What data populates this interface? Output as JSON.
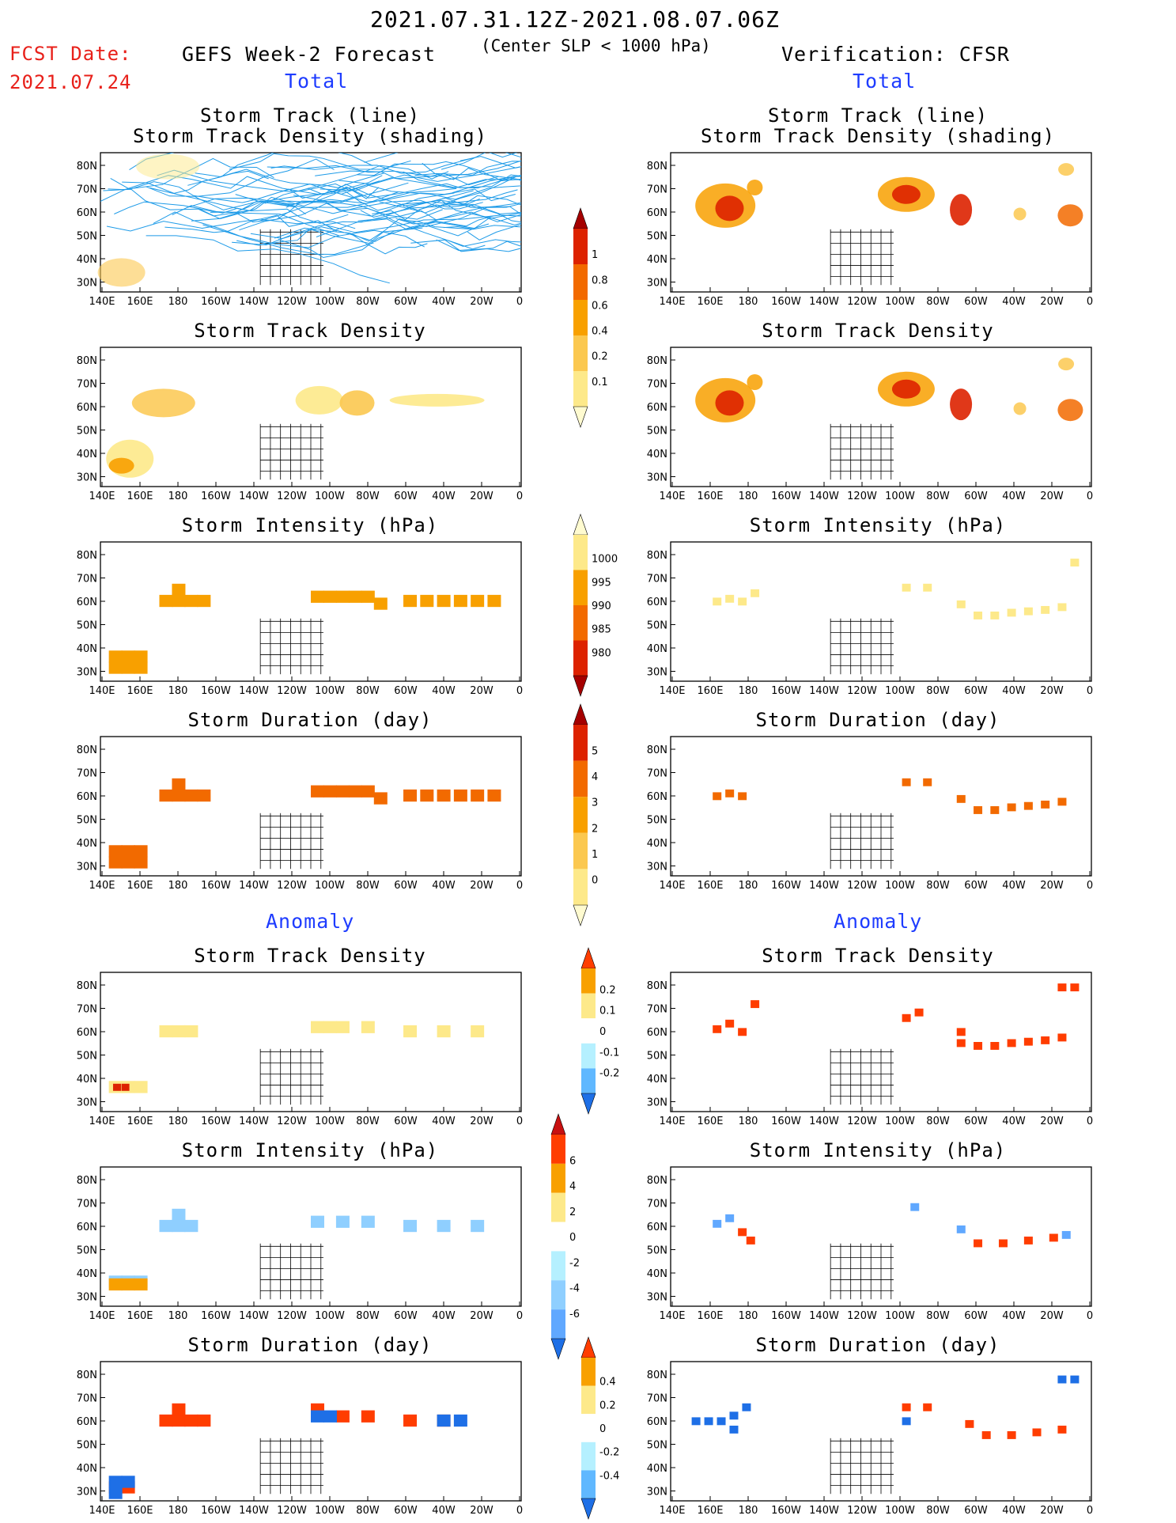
{
  "header": {
    "period": "2021.07.31.12Z-2021.08.07.06Z",
    "criterion": "(Center SLP < 1000 hPa)",
    "fcst_label": "FCST Date:",
    "fcst_date": "2021.07.24",
    "left_title": "GEFS Week-2 Forecast",
    "right_title": "Verification: CFSR",
    "section_total": "Total",
    "section_anomaly": "Anomaly"
  },
  "panel_titles": {
    "track_line": "Storm Track (line)",
    "track_shading": "Storm Track Density (shading)",
    "density": "Storm Track Density",
    "intensity": "Storm Intensity (hPa)",
    "duration": "Storm Duration (day)"
  },
  "axes": {
    "lat_labels": [
      "80N",
      "70N",
      "60N",
      "50N",
      "40N",
      "30N"
    ],
    "lon_labels": [
      "140E",
      "160E",
      "180",
      "160W",
      "140W",
      "120W",
      "100W",
      "80W",
      "60W",
      "40W",
      "20W",
      "0"
    ]
  },
  "colorbars": {
    "total_density": {
      "labels": [
        "1",
        "0.8",
        "0.6",
        "0.4",
        "0.2",
        "0.1"
      ],
      "colors": [
        "#a50000",
        "#dd2200",
        "#f26a00",
        "#f8a000",
        "#fbc850",
        "#fde98a",
        "#fffbd0"
      ]
    },
    "total_intensity": {
      "labels": [
        "1000",
        "995",
        "990",
        "985",
        "980"
      ],
      "colors": [
        "#fffbd0",
        "#fde98a",
        "#f8a000",
        "#f26a00",
        "#dd2200",
        "#a50000"
      ]
    },
    "total_duration": {
      "labels": [
        "5",
        "4",
        "3",
        "2",
        "1",
        "0"
      ],
      "colors": [
        "#a50000",
        "#dd2200",
        "#f26a00",
        "#f8a000",
        "#fbc850",
        "#fde98a",
        "#fffbd0"
      ]
    },
    "anom_density": {
      "labels": [
        "0.2",
        "0.1",
        "0",
        "-0.1",
        "-0.2"
      ],
      "colors": [
        "#ff3d00",
        "#f8a000",
        "#fde98a",
        "#ffffff",
        "#b5f0ff",
        "#60b8ff",
        "#1e6fe6"
      ]
    },
    "anom_intensity": {
      "labels": [
        "6",
        "4",
        "2",
        "0",
        "-2",
        "-4",
        "-6"
      ],
      "colors": [
        "#c81010",
        "#ff3d00",
        "#f8a000",
        "#fde98a",
        "#ffffff",
        "#b5f0ff",
        "#8fcfff",
        "#60a8ff",
        "#1e6fe6"
      ]
    },
    "anom_duration": {
      "labels": [
        "0.4",
        "0.2",
        "0",
        "-0.2",
        "-0.4"
      ],
      "colors": [
        "#ff3d00",
        "#f8a000",
        "#fde98a",
        "#ffffff",
        "#b5f0ff",
        "#60b8ff",
        "#1e6fe6"
      ]
    }
  }
}
